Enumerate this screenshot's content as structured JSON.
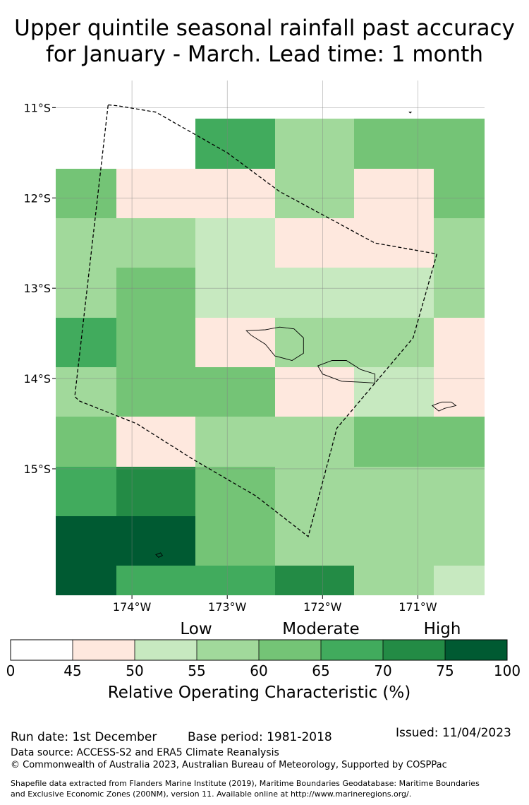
{
  "title": {
    "line1": "Upper quintile seasonal rainfall past accuracy",
    "line2": "for January - March. Lead time: 1 month"
  },
  "map": {
    "lat_labels": [
      "11°S",
      "12°S",
      "13°S",
      "14°S",
      "15°S"
    ],
    "lon_labels": [
      "174°W",
      "173°W",
      "172°W",
      "171°W"
    ],
    "lon_range": [
      -174.8,
      -170.3
    ],
    "lat_range": [
      -16.4,
      -10.7
    ],
    "grid": {
      "lon_edges": [
        -174.8,
        -174.167,
        -173.333,
        -172.5,
        -171.667,
        -170.833,
        -170.3
      ],
      "lat_edges": [
        -10.7,
        -11.125,
        -11.675,
        -12.225,
        -12.775,
        -13.325,
        -13.875,
        -14.425,
        -14.975,
        -15.525,
        -16.075,
        -16.4
      ],
      "values": [
        [
          null,
          null,
          65,
          55,
          60,
          60
        ],
        [
          60,
          45,
          45,
          55,
          45,
          60
        ],
        [
          55,
          55,
          50,
          45,
          45,
          55
        ],
        [
          55,
          60,
          50,
          50,
          50,
          55
        ],
        [
          65,
          60,
          45,
          55,
          55,
          45
        ],
        [
          55,
          60,
          60,
          45,
          50,
          45
        ],
        [
          60,
          45,
          55,
          55,
          60,
          60
        ],
        [
          65,
          70,
          60,
          55,
          55,
          55
        ],
        [
          75,
          75,
          60,
          55,
          55,
          55
        ],
        [
          75,
          65,
          65,
          70,
          55,
          50
        ]
      ]
    },
    "eez_boundary": [
      [
        -174.25,
        -10.97
      ],
      [
        -174.15,
        -10.98
      ],
      [
        -173.75,
        -11.05
      ],
      [
        -173.0,
        -11.5
      ],
      [
        -172.45,
        -11.93
      ],
      [
        -171.45,
        -12.5
      ],
      [
        -170.8,
        -12.62
      ],
      [
        -171.05,
        -13.55
      ],
      [
        -171.85,
        -14.55
      ],
      [
        -172.15,
        -15.75
      ],
      [
        -172.7,
        -15.3
      ],
      [
        -173.35,
        -14.9
      ],
      [
        -173.95,
        -14.5
      ],
      [
        -174.55,
        -14.25
      ],
      [
        -174.6,
        -14.2
      ],
      [
        -174.25,
        -10.97
      ]
    ],
    "islands": [
      {
        "name": "Savaii",
        "points": [
          [
            -172.8,
            -13.47
          ],
          [
            -172.6,
            -13.46
          ],
          [
            -172.45,
            -13.43
          ],
          [
            -172.3,
            -13.45
          ],
          [
            -172.2,
            -13.55
          ],
          [
            -172.2,
            -13.72
          ],
          [
            -172.32,
            -13.8
          ],
          [
            -172.5,
            -13.75
          ],
          [
            -172.6,
            -13.62
          ],
          [
            -172.75,
            -13.52
          ],
          [
            -172.8,
            -13.47
          ]
        ]
      },
      {
        "name": "Upolu",
        "points": [
          [
            -172.05,
            -13.86
          ],
          [
            -171.9,
            -13.8
          ],
          [
            -171.75,
            -13.8
          ],
          [
            -171.6,
            -13.9
          ],
          [
            -171.45,
            -13.95
          ],
          [
            -171.45,
            -14.05
          ],
          [
            -171.6,
            -14.04
          ],
          [
            -171.8,
            -14.03
          ],
          [
            -172.0,
            -13.95
          ],
          [
            -172.05,
            -13.86
          ]
        ]
      },
      {
        "name": "Tutuila",
        "points": [
          [
            -170.85,
            -14.3
          ],
          [
            -170.75,
            -14.26
          ],
          [
            -170.65,
            -14.26
          ],
          [
            -170.6,
            -14.3
          ],
          [
            -170.72,
            -14.33
          ],
          [
            -170.78,
            -14.36
          ],
          [
            -170.85,
            -14.3
          ]
        ]
      },
      {
        "name": "Swains",
        "points": [
          [
            -171.09,
            -11.05
          ],
          [
            -171.07,
            -11.05
          ],
          [
            -171.08,
            -11.06
          ],
          [
            -171.09,
            -11.05
          ]
        ]
      },
      {
        "name": "Rose",
        "points": [
          [
            -173.75,
            -15.95
          ],
          [
            -173.7,
            -15.93
          ],
          [
            -173.68,
            -15.96
          ],
          [
            -173.72,
            -15.98
          ],
          [
            -173.75,
            -15.95
          ]
        ]
      }
    ]
  },
  "colorbar": {
    "category_labels": [
      "Low",
      "Moderate",
      "High"
    ],
    "ticks": [
      "0",
      "45",
      "50",
      "55",
      "60",
      "65",
      "70",
      "75",
      "100"
    ],
    "colors": [
      "#ffffff",
      "#fee8de",
      "#c7e9c0",
      "#a1d99b",
      "#74c476",
      "#41ab5d",
      "#238b45",
      "#005a32"
    ],
    "title": "Relative Operating Characteristic (%)"
  },
  "footer": {
    "run_date": "Run date: 1st December",
    "base_period": "Base period: 1981-2018",
    "issued": "Issued: 11/04/2023",
    "data_source": "Data source: ACCESS-S2 and ERA5 Climate Reanalysis",
    "copyright": "© Commonwealth of Australia 2023, Australian Bureau of Meteorology, Supported by COSPPac",
    "shapefile_line1": "Shapefile data extracted from Flanders Marine Institute (2019), Maritime Boundaries Geodatabase: Maritime Boundaries",
    "shapefile_line2": "and Exclusive Economic Zones (200NM), version 11. Available online at http://www.marineregions.org/."
  }
}
